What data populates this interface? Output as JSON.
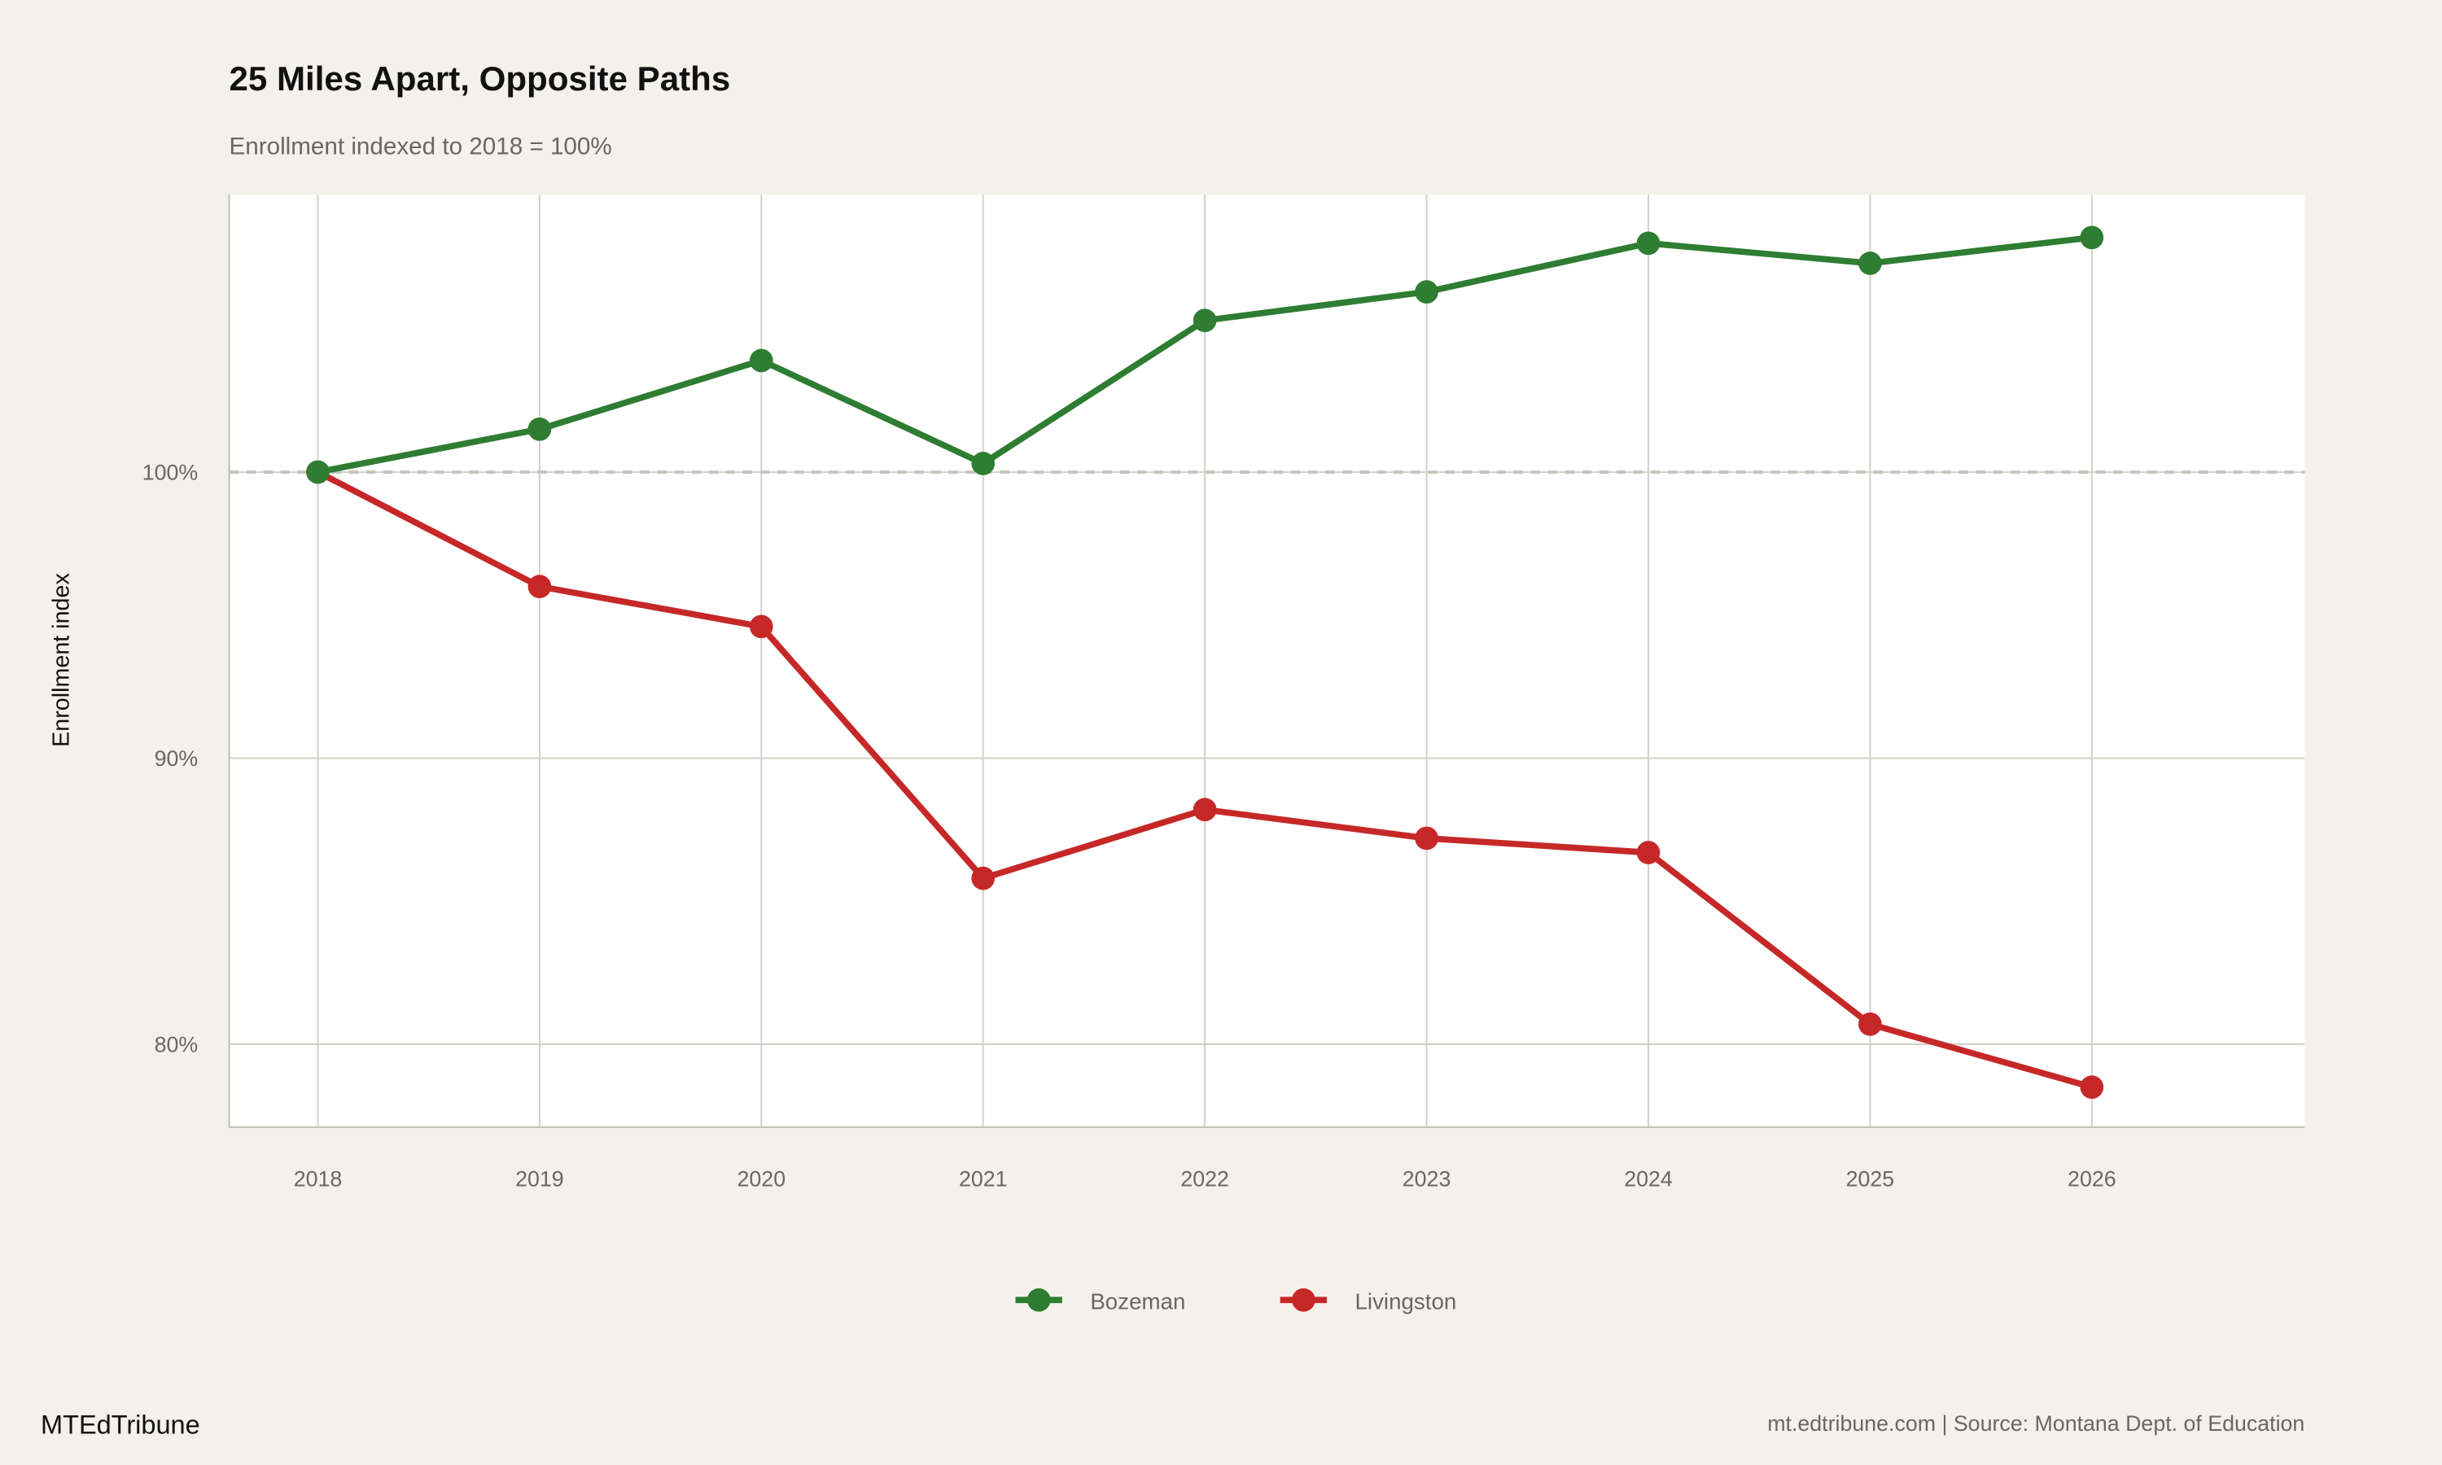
{
  "chart_data": {
    "type": "line",
    "title": "25 Miles Apart, Opposite Paths",
    "subtitle": "Enrollment indexed to 2018 = 100%",
    "xlabel": "",
    "ylabel": "Enrollment index",
    "x": [
      2018,
      2019,
      2020,
      2021,
      2022,
      2023,
      2024,
      2025,
      2026
    ],
    "x_tick_labels": [
      "2018",
      "2019",
      "2020",
      "2021",
      "2022",
      "2023",
      "2024",
      "2025",
      "2026"
    ],
    "y_ticks": [
      80,
      90,
      100
    ],
    "y_tick_labels": [
      "80%",
      "90%",
      "100%"
    ],
    "xlim": [
      2017.6,
      2026.96
    ],
    "ylim": [
      77.1,
      109.7
    ],
    "reference_line": 100,
    "grid": true,
    "legend_position": "bottom",
    "series": [
      {
        "name": "Bozeman",
        "color": "#2e7d32",
        "values": [
          100,
          101.5,
          103.9,
          100.3,
          105.3,
          106.3,
          108.0,
          107.3,
          108.2
        ]
      },
      {
        "name": "Livingston",
        "color": "#c62828",
        "values": [
          100,
          96.0,
          94.6,
          85.8,
          88.2,
          87.2,
          86.7,
          80.7,
          78.5
        ]
      }
    ]
  },
  "footer": {
    "brand": "MTEdTribune",
    "caption": "mt.edtribune.com | Source: Montana Dept. of Education"
  }
}
